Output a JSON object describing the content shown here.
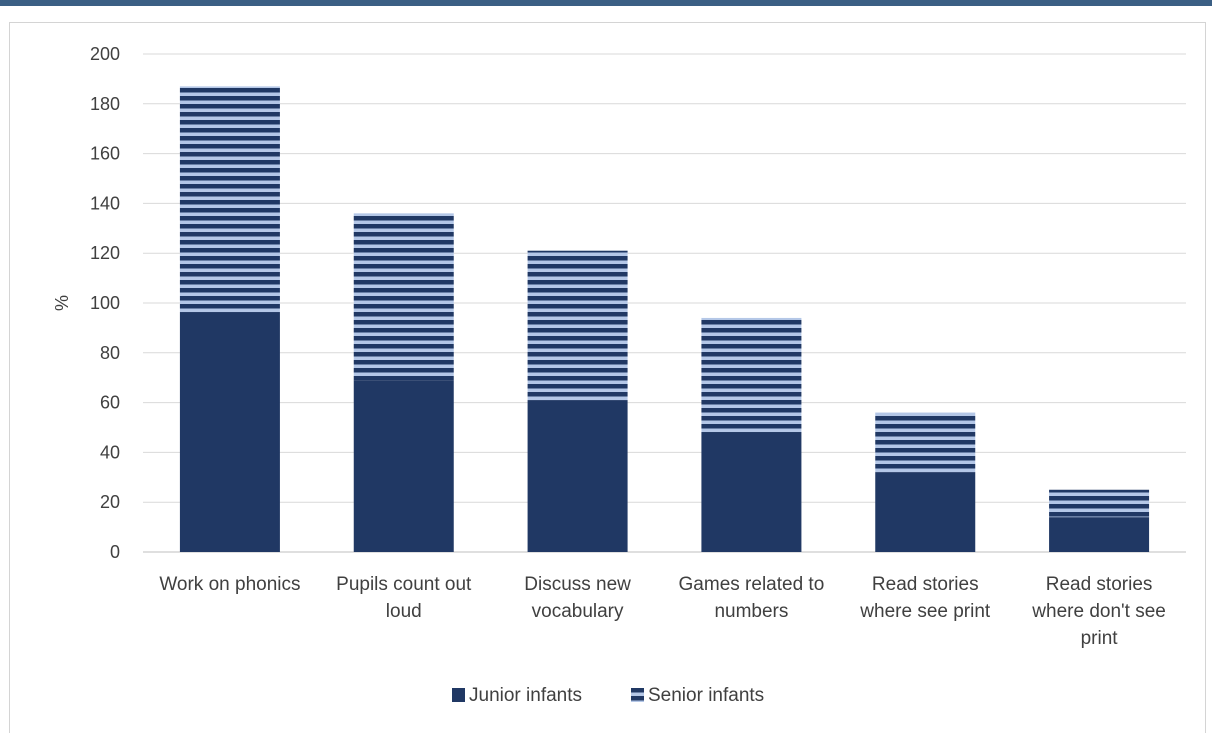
{
  "chart_data": {
    "type": "bar",
    "stacked": true,
    "ylabel": "%",
    "ylim": [
      0,
      200
    ],
    "yticks": [
      0,
      20,
      40,
      60,
      80,
      100,
      120,
      140,
      160,
      180,
      200
    ],
    "grid": true,
    "legend_position": "bottom",
    "categories": [
      [
        "Work on phonics"
      ],
      [
        "Pupils count out",
        "loud"
      ],
      [
        "Discuss new",
        "vocabulary"
      ],
      [
        "Games related to",
        "numbers"
      ],
      [
        "Read stories",
        "where see print"
      ],
      [
        "Read stories",
        "where don't see",
        "print"
      ]
    ],
    "series": [
      {
        "name": "Junior infants",
        "values": [
          96,
          69,
          61,
          48,
          32,
          14
        ],
        "color": "#203864",
        "pattern": "solid"
      },
      {
        "name": "Senior infants",
        "values": [
          91,
          67,
          60,
          46,
          24,
          11
        ],
        "color": "#203864",
        "pattern": "horizontal-stripes",
        "stripe_color": "#b4c7e7"
      }
    ]
  }
}
